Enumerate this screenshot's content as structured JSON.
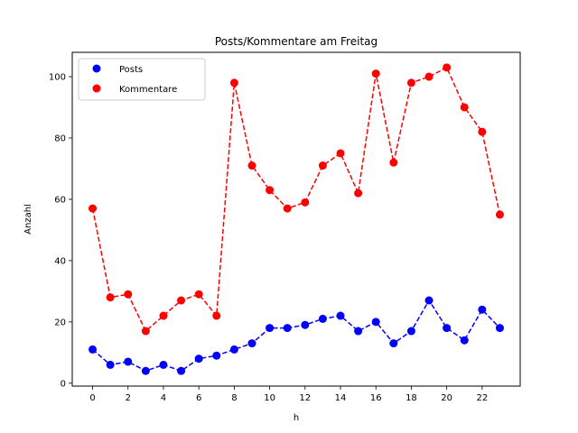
{
  "chart_data": {
    "type": "line",
    "title": "Posts/Kommentare am Freitag",
    "xlabel": "h",
    "ylabel": "Anzahl",
    "xlim": [
      -1.15,
      24.15
    ],
    "ylim": [
      -0.95,
      107.95
    ],
    "x": [
      0,
      1,
      2,
      3,
      4,
      5,
      6,
      7,
      8,
      9,
      10,
      11,
      12,
      13,
      14,
      15,
      16,
      17,
      18,
      19,
      20,
      21,
      22,
      23
    ],
    "xticks": [
      0,
      2,
      4,
      6,
      8,
      10,
      12,
      14,
      16,
      18,
      20,
      22
    ],
    "yticks": [
      0,
      20,
      40,
      60,
      80,
      100
    ],
    "grid": false,
    "legend_position": "upper-left",
    "series": [
      {
        "name": "Posts",
        "color": "#0000ff",
        "values": [
          11,
          6,
          7,
          4,
          6,
          4,
          8,
          9,
          11,
          13,
          18,
          18,
          19,
          21,
          22,
          17,
          20,
          13,
          17,
          27,
          18,
          14,
          24,
          18
        ]
      },
      {
        "name": "Kommentare",
        "color": "#ff0000",
        "values": [
          57,
          28,
          29,
          17,
          22,
          27,
          29,
          22,
          98,
          71,
          63,
          57,
          59,
          71,
          75,
          62,
          101,
          72,
          98,
          100,
          103,
          90,
          82,
          55
        ]
      }
    ]
  }
}
